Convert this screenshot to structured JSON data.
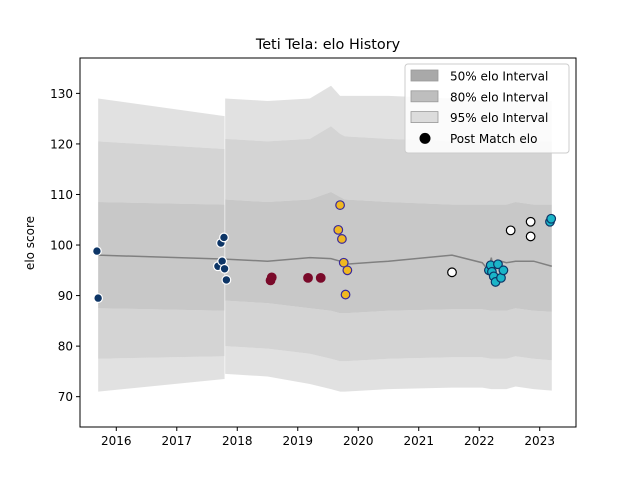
{
  "chart_data": {
    "type": "line",
    "title": "Teti Tela: elo History",
    "xlabel": "",
    "ylabel": "elo score",
    "xlim": [
      2015.4,
      2023.6
    ],
    "ylim": [
      64.0,
      137.0
    ],
    "x_ticks": [
      2016,
      2017,
      2018,
      2019,
      2020,
      2021,
      2022,
      2023
    ],
    "y_ticks": [
      70,
      80,
      90,
      100,
      110,
      120,
      130
    ],
    "legend_position": "top-right",
    "legend": [
      {
        "label": "50% elo Interval",
        "kind": "band",
        "color": "#a9a9a9"
      },
      {
        "label": "80% elo Interval",
        "kind": "band",
        "color": "#bebebe"
      },
      {
        "label": "95% elo Interval",
        "kind": "band",
        "color": "#dcdcdc"
      },
      {
        "label": "Post Match elo",
        "kind": "marker",
        "color": "#000000"
      }
    ],
    "intervals": {
      "x": [
        2015.7,
        2017.79,
        2017.8,
        2018.5,
        2019.2,
        2019.55,
        2019.7,
        2019.78,
        2020.5,
        2021.55,
        2022.05,
        2022.2,
        2022.45,
        2022.6,
        2022.9,
        2023.2
      ],
      "p95_upper": [
        129,
        125.5,
        129,
        128.5,
        129,
        131.5,
        129.5,
        129.5,
        129.5,
        129,
        128.5,
        128.5,
        128.5,
        129,
        128.5,
        128.5
      ],
      "p95_lower": [
        71,
        73.5,
        74.5,
        74,
        72.5,
        71.5,
        71,
        71,
        71.5,
        71.8,
        71.8,
        71.5,
        71.5,
        72,
        71.5,
        71.2
      ],
      "p80_upper": [
        120.5,
        119,
        121,
        120.5,
        121,
        123.5,
        122,
        121.5,
        121,
        120.5,
        120.5,
        120.5,
        120.5,
        121,
        120.5,
        120.5
      ],
      "p80_lower": [
        77.5,
        78,
        80,
        79.5,
        78.5,
        77.5,
        77,
        77,
        77.5,
        77.8,
        77.8,
        77.5,
        77.5,
        78,
        77.5,
        77.2
      ],
      "p50_upper": [
        108.5,
        108,
        109,
        108.5,
        109,
        110.5,
        109.5,
        109,
        108.5,
        108,
        108,
        108,
        108,
        108.5,
        108,
        108
      ],
      "p50_lower": [
        87.5,
        87,
        89,
        88.5,
        87.5,
        87,
        86.5,
        86.5,
        87,
        87.3,
        87.3,
        87,
        87,
        87.5,
        87,
        86.8
      ]
    },
    "elo_line": {
      "x": [
        2015.7,
        2017.8,
        2018.5,
        2019.2,
        2019.55,
        2019.7,
        2019.78,
        2020.5,
        2021.55,
        2022.05,
        2022.15,
        2022.2,
        2022.25,
        2022.3,
        2022.45,
        2022.6,
        2022.9,
        2023.2
      ],
      "y": [
        98,
        97.2,
        96.8,
        97.5,
        97.3,
        96.8,
        96.2,
        96.8,
        98,
        96.5,
        95,
        97.5,
        94,
        97,
        96.5,
        96.8,
        96.8,
        95.8
      ]
    },
    "post_match_elo": [
      {
        "x": 2015.68,
        "y": 98.8,
        "fill": "#0d3566",
        "edge": "#ffffff"
      },
      {
        "x": 2015.7,
        "y": 89.5,
        "fill": "#0d3566",
        "edge": "#ffffff"
      },
      {
        "x": 2017.68,
        "y": 95.8,
        "fill": "#0d3566",
        "edge": "#ffffff"
      },
      {
        "x": 2017.73,
        "y": 100.4,
        "fill": "#0d3566",
        "edge": "#ffffff"
      },
      {
        "x": 2017.75,
        "y": 96.8,
        "fill": "#0d3566",
        "edge": "#ffffff"
      },
      {
        "x": 2017.78,
        "y": 101.5,
        "fill": "#0d3566",
        "edge": "#ffffff"
      },
      {
        "x": 2017.79,
        "y": 95.3,
        "fill": "#0d3566",
        "edge": "#ffffff"
      },
      {
        "x": 2017.82,
        "y": 93.1,
        "fill": "#0d3566",
        "edge": "#ffffff"
      },
      {
        "x": 2018.55,
        "y": 93.0,
        "fill": "#7a0a2a",
        "edge": "#7a0a2a"
      },
      {
        "x": 2018.57,
        "y": 93.6,
        "fill": "#7a0a2a",
        "edge": "#7a0a2a"
      },
      {
        "x": 2019.17,
        "y": 93.5,
        "fill": "#7a0a2a",
        "edge": "#7a0a2a"
      },
      {
        "x": 2019.38,
        "y": 93.5,
        "fill": "#7a0a2a",
        "edge": "#7a0a2a"
      },
      {
        "x": 2019.67,
        "y": 103.0,
        "fill": "#f0b820",
        "edge": "#3a2a9a"
      },
      {
        "x": 2019.7,
        "y": 107.9,
        "fill": "#f0b820",
        "edge": "#3a2a9a"
      },
      {
        "x": 2019.73,
        "y": 101.2,
        "fill": "#f0b820",
        "edge": "#3a2a9a"
      },
      {
        "x": 2019.76,
        "y": 96.5,
        "fill": "#f0b820",
        "edge": "#3a2a9a"
      },
      {
        "x": 2019.79,
        "y": 90.2,
        "fill": "#f0b820",
        "edge": "#3a2a9a"
      },
      {
        "x": 2019.82,
        "y": 95.0,
        "fill": "#f0b820",
        "edge": "#3a2a9a"
      },
      {
        "x": 2021.55,
        "y": 94.6,
        "fill": "#ffffff",
        "edge": "#000000"
      },
      {
        "x": 2022.16,
        "y": 95.0,
        "fill": "#1ab5c8",
        "edge": "#0d3566"
      },
      {
        "x": 2022.19,
        "y": 96.0,
        "fill": "#1ab5c8",
        "edge": "#0d3566"
      },
      {
        "x": 2022.21,
        "y": 94.7,
        "fill": "#1ab5c8",
        "edge": "#0d3566"
      },
      {
        "x": 2022.24,
        "y": 93.8,
        "fill": "#1ab5c8",
        "edge": "#0d3566"
      },
      {
        "x": 2022.27,
        "y": 92.7,
        "fill": "#1ab5c8",
        "edge": "#0d3566"
      },
      {
        "x": 2022.31,
        "y": 96.2,
        "fill": "#1ab5c8",
        "edge": "#0d3566"
      },
      {
        "x": 2022.36,
        "y": 93.5,
        "fill": "#1ab5c8",
        "edge": "#0d3566"
      },
      {
        "x": 2022.4,
        "y": 95.0,
        "fill": "#1ab5c8",
        "edge": "#0d3566"
      },
      {
        "x": 2022.52,
        "y": 102.9,
        "fill": "#ffffff",
        "edge": "#000000"
      },
      {
        "x": 2022.85,
        "y": 104.6,
        "fill": "#ffffff",
        "edge": "#000000"
      },
      {
        "x": 2022.85,
        "y": 101.7,
        "fill": "#ffffff",
        "edge": "#000000"
      },
      {
        "x": 2023.17,
        "y": 104.6,
        "fill": "#1ab5c8",
        "edge": "#0d3566"
      },
      {
        "x": 2023.19,
        "y": 105.2,
        "fill": "#1ab5c8",
        "edge": "#0d3566"
      }
    ]
  }
}
